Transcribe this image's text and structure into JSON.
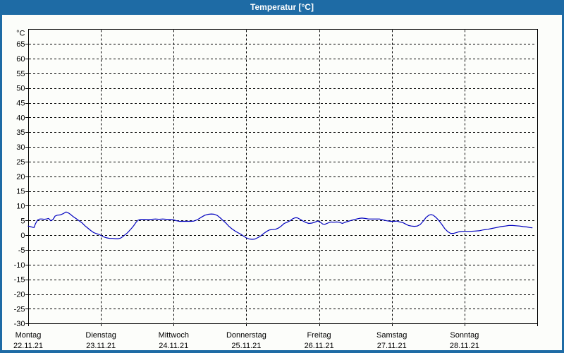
{
  "window": {
    "title": "Temperatur [°C]",
    "colors": {
      "title_bar": "#1e6ba5",
      "frame": "#1e6ba5",
      "background": "#fcfdfa",
      "axis": "#000000",
      "label_text": "#000000"
    }
  },
  "chart_data": {
    "type": "line",
    "title": "Temperatur [°C]",
    "grid": "dashed",
    "legend": "none",
    "line_color": "#0000bf",
    "y_axis": {
      "unit_label": "°C",
      "min": -30,
      "max": 70,
      "tick_step": 5,
      "ticks": [
        65,
        60,
        55,
        50,
        45,
        40,
        35,
        30,
        25,
        20,
        15,
        10,
        5,
        0,
        -5,
        -10,
        -15,
        -20,
        -25,
        -30
      ]
    },
    "x_axis": {
      "range_days": 7,
      "day_labels": [
        {
          "name": "Montag",
          "date": "22.11.21"
        },
        {
          "name": "Dienstag",
          "date": "23.11.21"
        },
        {
          "name": "Mittwoch",
          "date": "24.11.21"
        },
        {
          "name": "Donnerstag",
          "date": "25.11.21"
        },
        {
          "name": "Freitag",
          "date": "26.11.21"
        },
        {
          "name": "Samstag",
          "date": "27.11.21"
        },
        {
          "name": "Sonntag",
          "date": "28.11.21"
        }
      ]
    },
    "series": [
      {
        "name": "Temperatur",
        "unit": "°C",
        "points": [
          [
            0.0,
            3.1
          ],
          [
            0.03,
            2.9
          ],
          [
            0.06,
            2.7
          ],
          [
            0.08,
            2.6
          ],
          [
            0.1,
            3.9
          ],
          [
            0.13,
            5.2
          ],
          [
            0.16,
            5.5
          ],
          [
            0.19,
            5.5
          ],
          [
            0.22,
            5.4
          ],
          [
            0.25,
            5.5
          ],
          [
            0.28,
            5.7
          ],
          [
            0.31,
            4.9
          ],
          [
            0.34,
            5.3
          ],
          [
            0.37,
            6.5
          ],
          [
            0.4,
            6.8
          ],
          [
            0.44,
            6.9
          ],
          [
            0.48,
            7.3
          ],
          [
            0.52,
            7.9
          ],
          [
            0.55,
            7.6
          ],
          [
            0.58,
            7.1
          ],
          [
            0.62,
            6.3
          ],
          [
            0.66,
            5.6
          ],
          [
            0.7,
            4.9
          ],
          [
            0.74,
            4.2
          ],
          [
            0.78,
            3.2
          ],
          [
            0.82,
            2.4
          ],
          [
            0.86,
            1.6
          ],
          [
            0.9,
            0.9
          ],
          [
            0.94,
            0.5
          ],
          [
            0.97,
            0.3
          ],
          [
            1.0,
            -0.1
          ],
          [
            1.04,
            -0.6
          ],
          [
            1.08,
            -0.9
          ],
          [
            1.12,
            -1.1
          ],
          [
            1.16,
            -1.1
          ],
          [
            1.2,
            -1.2
          ],
          [
            1.24,
            -1.2
          ],
          [
            1.27,
            -1.0
          ],
          [
            1.3,
            -0.5
          ],
          [
            1.33,
            0.1
          ],
          [
            1.36,
            0.7
          ],
          [
            1.39,
            1.5
          ],
          [
            1.42,
            2.3
          ],
          [
            1.45,
            3.2
          ],
          [
            1.48,
            4.3
          ],
          [
            1.51,
            5.1
          ],
          [
            1.55,
            5.4
          ],
          [
            1.6,
            5.4
          ],
          [
            1.65,
            5.3
          ],
          [
            1.7,
            5.4
          ],
          [
            1.75,
            5.5
          ],
          [
            1.8,
            5.4
          ],
          [
            1.85,
            5.5
          ],
          [
            1.9,
            5.4
          ],
          [
            1.95,
            5.4
          ],
          [
            2.0,
            5.2
          ],
          [
            2.04,
            4.9
          ],
          [
            2.08,
            4.7
          ],
          [
            2.13,
            4.7
          ],
          [
            2.18,
            4.7
          ],
          [
            2.23,
            4.7
          ],
          [
            2.28,
            4.8
          ],
          [
            2.33,
            5.3
          ],
          [
            2.38,
            6.1
          ],
          [
            2.43,
            6.8
          ],
          [
            2.48,
            7.1
          ],
          [
            2.52,
            7.2
          ],
          [
            2.56,
            7.1
          ],
          [
            2.6,
            6.7
          ],
          [
            2.64,
            5.9
          ],
          [
            2.68,
            5.0
          ],
          [
            2.72,
            4.1
          ],
          [
            2.76,
            3.0
          ],
          [
            2.8,
            2.2
          ],
          [
            2.84,
            1.5
          ],
          [
            2.88,
            0.9
          ],
          [
            2.92,
            0.4
          ],
          [
            2.96,
            -0.3
          ],
          [
            3.0,
            -0.9
          ],
          [
            3.04,
            -1.3
          ],
          [
            3.08,
            -1.4
          ],
          [
            3.12,
            -1.3
          ],
          [
            3.16,
            -0.8
          ],
          [
            3.2,
            -0.2
          ],
          [
            3.24,
            0.6
          ],
          [
            3.28,
            1.3
          ],
          [
            3.32,
            1.8
          ],
          [
            3.36,
            1.9
          ],
          [
            3.4,
            2.0
          ],
          [
            3.44,
            2.4
          ],
          [
            3.48,
            3.1
          ],
          [
            3.52,
            4.0
          ],
          [
            3.56,
            4.4
          ],
          [
            3.6,
            4.9
          ],
          [
            3.64,
            5.6
          ],
          [
            3.67,
            5.9
          ],
          [
            3.7,
            5.9
          ],
          [
            3.74,
            5.4
          ],
          [
            3.78,
            4.8
          ],
          [
            3.82,
            4.3
          ],
          [
            3.86,
            4.0
          ],
          [
            3.9,
            4.1
          ],
          [
            3.94,
            4.4
          ],
          [
            3.98,
            4.8
          ],
          [
            4.02,
            4.4
          ],
          [
            4.05,
            3.8
          ],
          [
            4.08,
            3.7
          ],
          [
            4.12,
            4.1
          ],
          [
            4.16,
            4.5
          ],
          [
            4.2,
            4.4
          ],
          [
            4.24,
            4.5
          ],
          [
            4.28,
            4.4
          ],
          [
            4.32,
            4.0
          ],
          [
            4.36,
            4.4
          ],
          [
            4.4,
            4.7
          ],
          [
            4.45,
            5.1
          ],
          [
            4.5,
            5.4
          ],
          [
            4.55,
            5.7
          ],
          [
            4.59,
            5.8
          ],
          [
            4.63,
            5.7
          ],
          [
            4.68,
            5.5
          ],
          [
            4.73,
            5.5
          ],
          [
            4.78,
            5.5
          ],
          [
            4.83,
            5.5
          ],
          [
            4.88,
            5.2
          ],
          [
            4.93,
            4.9
          ],
          [
            4.98,
            4.7
          ],
          [
            5.03,
            4.7
          ],
          [
            5.07,
            4.8
          ],
          [
            5.11,
            4.5
          ],
          [
            5.15,
            4.3
          ],
          [
            5.19,
            3.8
          ],
          [
            5.23,
            3.3
          ],
          [
            5.27,
            3.1
          ],
          [
            5.31,
            3.0
          ],
          [
            5.35,
            3.1
          ],
          [
            5.39,
            3.6
          ],
          [
            5.43,
            4.7
          ],
          [
            5.47,
            6.0
          ],
          [
            5.51,
            6.8
          ],
          [
            5.54,
            7.0
          ],
          [
            5.57,
            6.8
          ],
          [
            5.61,
            6.0
          ],
          [
            5.65,
            4.9
          ],
          [
            5.69,
            3.6
          ],
          [
            5.73,
            2.2
          ],
          [
            5.77,
            1.2
          ],
          [
            5.81,
            0.6
          ],
          [
            5.85,
            0.6
          ],
          [
            5.89,
            0.9
          ],
          [
            5.93,
            1.2
          ],
          [
            5.97,
            1.3
          ],
          [
            6.02,
            1.3
          ],
          [
            6.08,
            1.3
          ],
          [
            6.14,
            1.4
          ],
          [
            6.2,
            1.5
          ],
          [
            6.26,
            1.8
          ],
          [
            6.32,
            2.0
          ],
          [
            6.38,
            2.3
          ],
          [
            6.44,
            2.6
          ],
          [
            6.5,
            2.9
          ],
          [
            6.56,
            3.1
          ],
          [
            6.61,
            3.3
          ],
          [
            6.66,
            3.3
          ],
          [
            6.71,
            3.2
          ],
          [
            6.76,
            3.1
          ],
          [
            6.81,
            2.9
          ],
          [
            6.86,
            2.8
          ],
          [
            6.9,
            2.6
          ],
          [
            6.93,
            2.5
          ]
        ]
      }
    ]
  }
}
